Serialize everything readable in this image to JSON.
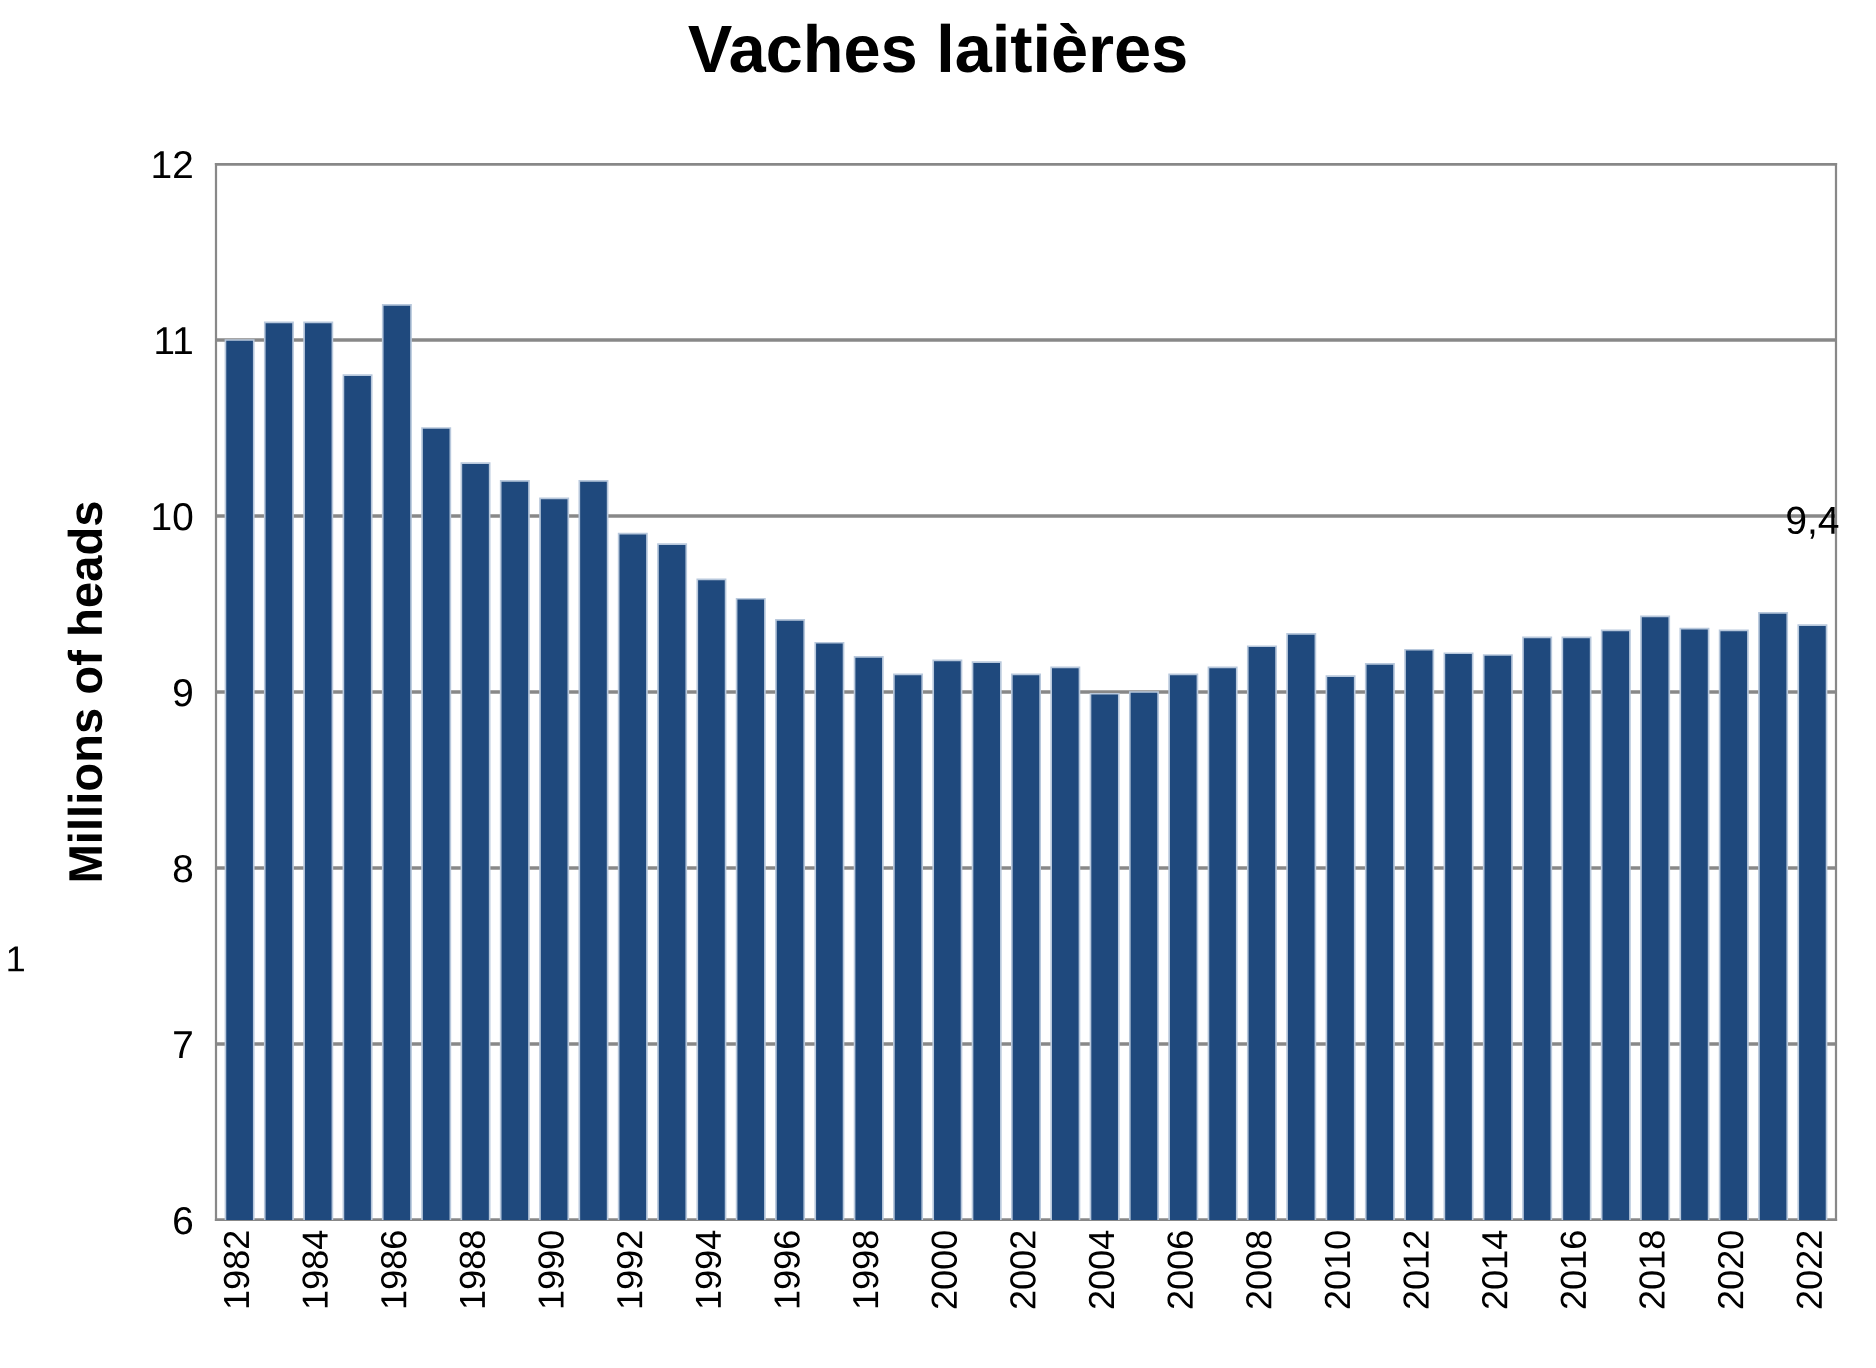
{
  "chart_data": {
    "type": "bar",
    "title": "Vaches laitières",
    "ylabel": "Millions of heads",
    "categories": [
      "1982",
      null,
      "1984",
      null,
      "1986",
      null,
      "1988",
      null,
      "1990",
      null,
      "1992",
      null,
      "1994",
      null,
      "1996",
      null,
      "1998",
      null,
      "2000",
      null,
      "2002",
      null,
      "2004",
      null,
      "2006",
      null,
      "2008",
      null,
      "2010",
      null,
      "2012",
      null,
      "2014",
      null,
      "2016",
      null,
      "2018",
      null,
      "2020",
      null,
      "2022"
    ],
    "values": [
      11.0,
      11.1,
      11.1,
      10.8,
      11.2,
      10.5,
      10.3,
      10.2,
      10.1,
      10.2,
      9.9,
      9.84,
      9.64,
      9.53,
      9.41,
      9.28,
      9.2,
      9.1,
      9.18,
      9.17,
      9.1,
      9.14,
      8.99,
      9.0,
      9.1,
      9.14,
      9.26,
      9.33,
      9.09,
      9.16,
      9.24,
      9.22,
      9.21,
      9.31,
      9.31,
      9.35,
      9.43,
      9.36,
      9.35,
      9.45,
      9.38
    ],
    "value_labels": [
      null,
      null,
      null,
      null,
      null,
      null,
      null,
      null,
      null,
      null,
      null,
      null,
      null,
      null,
      null,
      null,
      null,
      null,
      null,
      null,
      null,
      null,
      null,
      null,
      null,
      null,
      null,
      null,
      null,
      null,
      null,
      null,
      null,
      null,
      null,
      null,
      null,
      null,
      null,
      null,
      "9,4"
    ],
    "color": "#1f497d",
    "ylim": [
      6,
      12
    ],
    "yticks": [
      6,
      7,
      8,
      9,
      10,
      11,
      12
    ],
    "grid": "y",
    "annotations": [
      "1"
    ]
  }
}
